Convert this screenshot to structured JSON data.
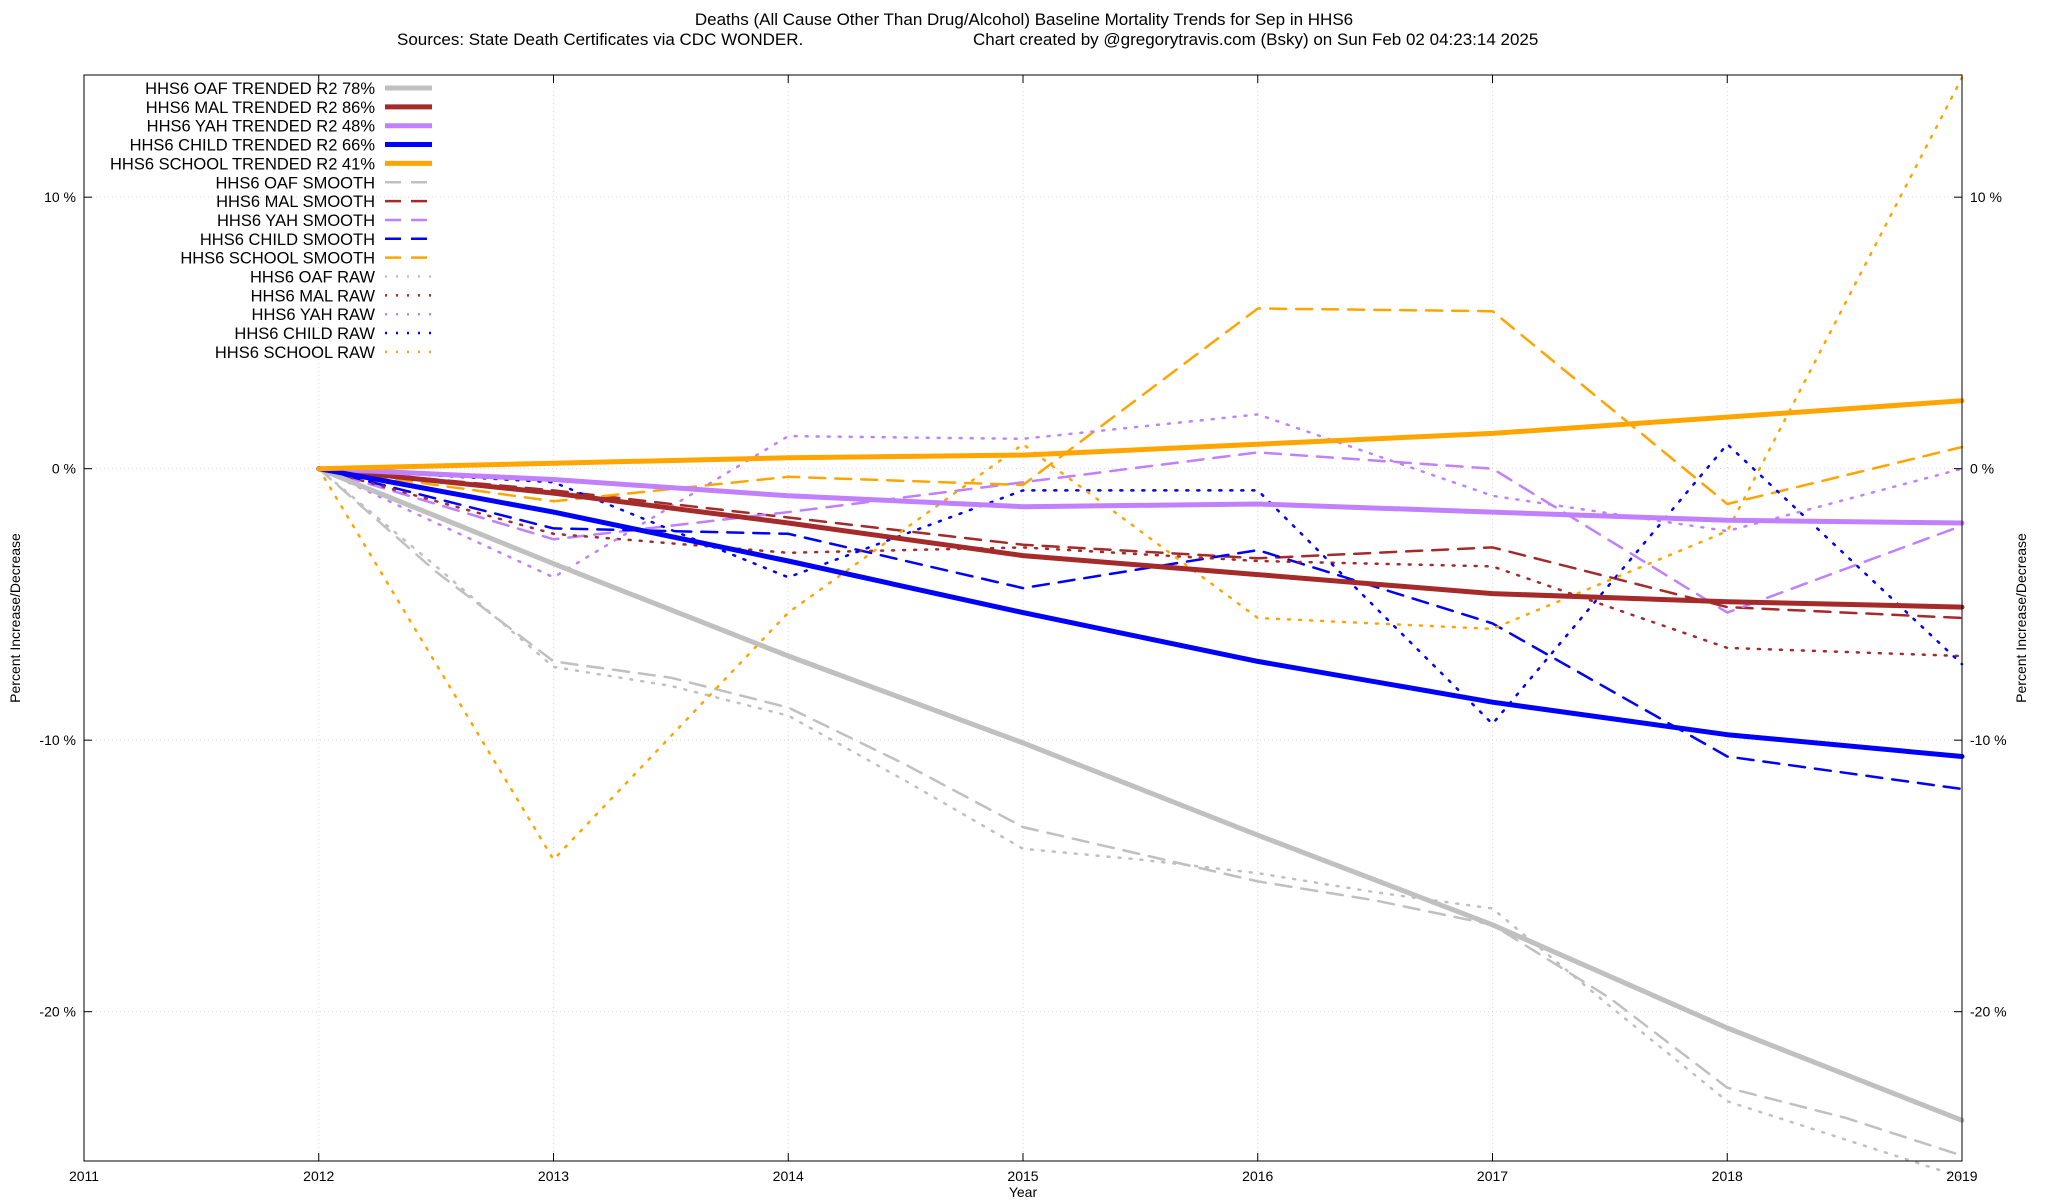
{
  "chart_data": {
    "type": "line",
    "title": "Deaths (All Cause Other Than Drug/Alcohol)  Baseline Mortality Trends for Sep in HHS6",
    "subtitle_left": "Sources: State Death Certificates via CDC WONDER.",
    "subtitle_right": "Chart created by @gregorytravis.com (Bsky) on Sun Feb 02 04:23:14 2025",
    "xlabel": "Year",
    "ylabel": "Percent Increase/Decrease",
    "y2label": "Percent Increase/Decrease",
    "xlim": [
      2011,
      2019
    ],
    "ylim": [
      -25.5,
      14.5
    ],
    "x_ticks": [
      "2011",
      "2012",
      "2013",
      "2014",
      "2015",
      "2016",
      "2017",
      "2018",
      "2019"
    ],
    "y_ticks": [
      {
        "value": 10,
        "label": "10 %"
      },
      {
        "value": 0,
        "label": "0 %"
      },
      {
        "value": -10,
        "label": "-10 %"
      },
      {
        "value": -20,
        "label": "-20 %"
      }
    ],
    "grid": true,
    "legend_position": "top-left",
    "series": [
      {
        "name": "HHS6 OAF TRENDED R2  78%",
        "style": "solid",
        "color": "#c0c0c0",
        "x": [
          2012,
          2013,
          2014,
          2015,
          2016,
          2017,
          2018,
          2019
        ],
        "y": [
          0,
          -3.5,
          -6.9,
          -10.1,
          -13.5,
          -16.8,
          -20.6,
          -24.0
        ]
      },
      {
        "name": "HHS6 MAL TRENDED R2  86%",
        "style": "solid",
        "color": "#a52a2a",
        "x": [
          2012,
          2013,
          2014,
          2015,
          2016,
          2017,
          2018,
          2019
        ],
        "y": [
          0,
          -0.9,
          -2.0,
          -3.2,
          -3.9,
          -4.6,
          -4.9,
          -5.1
        ]
      },
      {
        "name": "HHS6 YAH TRENDED R2  48%",
        "style": "solid",
        "color": "#c080ff",
        "x": [
          2012,
          2013,
          2014,
          2015,
          2016,
          2017,
          2018,
          2019
        ],
        "y": [
          0,
          -0.4,
          -1.0,
          -1.4,
          -1.3,
          -1.6,
          -1.9,
          -2.0
        ]
      },
      {
        "name": "HHS6 CHILD TRENDED R2  66%",
        "style": "solid",
        "color": "#0000ff",
        "x": [
          2012,
          2013,
          2014,
          2015,
          2016,
          2017,
          2018,
          2019
        ],
        "y": [
          0,
          -1.6,
          -3.4,
          -5.3,
          -7.1,
          -8.6,
          -9.8,
          -10.6
        ]
      },
      {
        "name": "HHS6 SCHOOL TRENDED R2  41%",
        "style": "solid",
        "color": "#ffa500",
        "x": [
          2012,
          2013,
          2014,
          2015,
          2016,
          2017,
          2018,
          2019
        ],
        "y": [
          0,
          0.2,
          0.4,
          0.5,
          0.9,
          1.3,
          1.9,
          2.5
        ]
      },
      {
        "name": "HHS6 OAF SMOOTH",
        "style": "dashed",
        "color": "#c0c0c0",
        "x": [
          2012,
          2012.5,
          2013,
          2013.5,
          2014,
          2014.5,
          2015,
          2015.5,
          2016,
          2016.5,
          2017,
          2017.5,
          2018,
          2018.5,
          2019
        ],
        "y": [
          0,
          -3.8,
          -7.1,
          -7.7,
          -8.8,
          -10.9,
          -13.2,
          -14.2,
          -15.2,
          -15.9,
          -16.8,
          -19.5,
          -22.8,
          -23.9,
          -25.3
        ]
      },
      {
        "name": "HHS6 MAL SMOOTH",
        "style": "dashed",
        "color": "#a52a2a",
        "x": [
          2012,
          2013,
          2014,
          2015,
          2016,
          2017,
          2018,
          2019
        ],
        "y": [
          0,
          -0.8,
          -1.8,
          -2.8,
          -3.3,
          -2.9,
          -5.1,
          -5.5
        ]
      },
      {
        "name": "HHS6 YAH SMOOTH",
        "style": "dashed",
        "color": "#c080ff",
        "x": [
          2012,
          2013,
          2014,
          2015,
          2016,
          2017,
          2018,
          2019
        ],
        "y": [
          0,
          -2.6,
          -1.6,
          -0.5,
          0.6,
          0.0,
          -5.3,
          -2.1
        ]
      },
      {
        "name": "HHS6 CHILD SMOOTH",
        "style": "dashed",
        "color": "#0000ff",
        "x": [
          2012,
          2013,
          2014,
          2015,
          2016,
          2017,
          2018,
          2019
        ],
        "y": [
          0,
          -2.2,
          -2.4,
          -4.4,
          -3.0,
          -5.7,
          -10.6,
          -11.8
        ]
      },
      {
        "name": "HHS6 SCHOOL SMOOTH",
        "style": "dashed",
        "color": "#ffa500",
        "x": [
          2012,
          2013,
          2014,
          2015,
          2016,
          2017,
          2018,
          2019
        ],
        "y": [
          0,
          -1.2,
          -0.3,
          -0.6,
          5.9,
          5.8,
          -1.3,
          0.8
        ]
      },
      {
        "name": "HHS6 OAF RAW",
        "style": "dotted",
        "color": "#c0c0c0",
        "x": [
          2012,
          2012.5,
          2013,
          2013.5,
          2014,
          2014.5,
          2015,
          2015.5,
          2016,
          2016.5,
          2017,
          2017.5,
          2018,
          2018.5,
          2019
        ],
        "y": [
          0,
          -3.6,
          -7.3,
          -8.0,
          -9.1,
          -11.5,
          -14.0,
          -14.4,
          -14.9,
          -15.6,
          -16.2,
          -19.8,
          -23.3,
          -24.7,
          -26.1
        ]
      },
      {
        "name": "HHS6 MAL RAW",
        "style": "dotted",
        "color": "#a52a2a",
        "x": [
          2012,
          2013,
          2014,
          2015,
          2016,
          2017,
          2018,
          2019
        ],
        "y": [
          0,
          -2.4,
          -3.1,
          -2.9,
          -3.4,
          -3.6,
          -6.6,
          -6.9
        ]
      },
      {
        "name": "HHS6 YAH RAW",
        "style": "dotted",
        "color": "#c080ff",
        "x": [
          2012,
          2013,
          2014,
          2015,
          2016,
          2017,
          2018,
          2019
        ],
        "y": [
          0,
          -4.0,
          1.2,
          1.1,
          2.0,
          -1.0,
          -2.3,
          0.0
        ]
      },
      {
        "name": "HHS6 CHILD RAW",
        "style": "dotted",
        "color": "#0000ff",
        "x": [
          2012,
          2013,
          2014,
          2015,
          2016,
          2017,
          2018,
          2019
        ],
        "y": [
          0,
          -0.5,
          -4.0,
          -0.8,
          -0.8,
          -9.4,
          0.9,
          -7.2
        ]
      },
      {
        "name": "HHS6 SCHOOL RAW",
        "style": "dotted",
        "color": "#ffa500",
        "x": [
          2012,
          2013,
          2014,
          2015,
          2016,
          2017,
          2018,
          2019
        ],
        "y": [
          0,
          -14.4,
          -5.3,
          0.9,
          -5.5,
          -5.9,
          -2.3,
          14.4
        ]
      }
    ]
  }
}
